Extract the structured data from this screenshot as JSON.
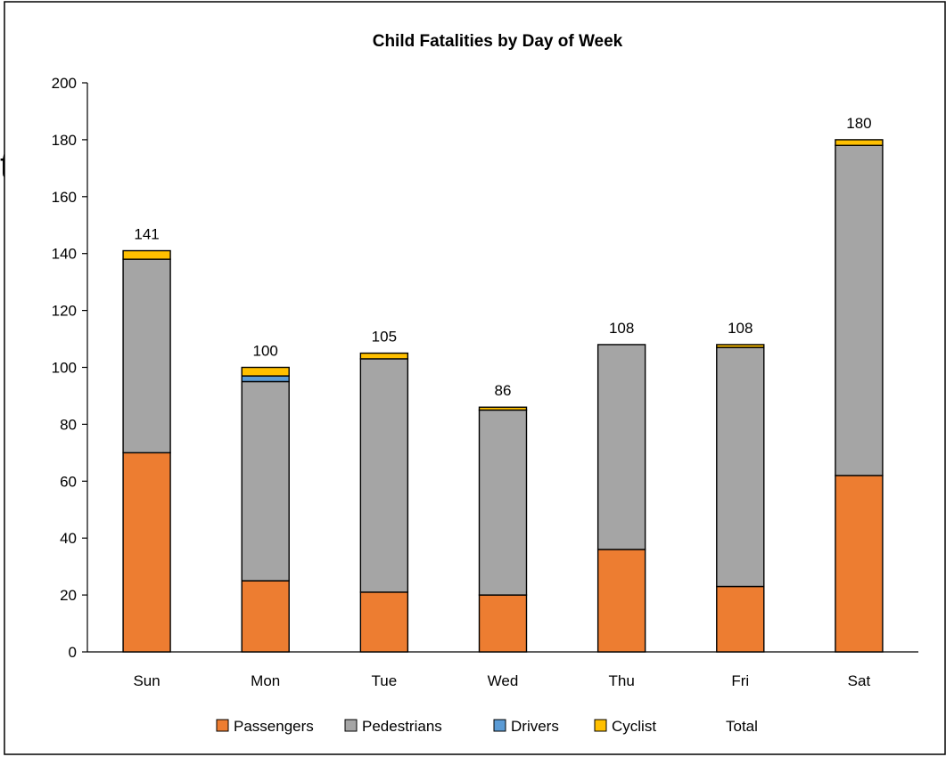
{
  "stray_text": "t",
  "chart_data": {
    "type": "bar",
    "stacked": true,
    "title": "Child Fatalities by Day of Week",
    "xlabel": "",
    "ylabel": "",
    "ylim": [
      0,
      200
    ],
    "yticks": [
      0,
      20,
      40,
      60,
      80,
      100,
      120,
      140,
      160,
      180,
      200
    ],
    "grid": false,
    "legend_position": "bottom",
    "categories": [
      "Sun",
      "Mon",
      "Tue",
      "Wed",
      "Thu",
      "Fri",
      "Sat"
    ],
    "series": [
      {
        "name": "Passengers",
        "color": "#ED7D31",
        "values": [
          70,
          25,
          21,
          20,
          36,
          23,
          62
        ]
      },
      {
        "name": "Pedestrians",
        "color": "#A5A5A5",
        "values": [
          68,
          70,
          82,
          65,
          72,
          84,
          116
        ]
      },
      {
        "name": "Drivers",
        "color": "#5B9BD5",
        "values": [
          0,
          2,
          0,
          0,
          0,
          0,
          0
        ]
      },
      {
        "name": "Cyclist",
        "color": "#FFC000",
        "values": [
          3,
          3,
          2,
          1,
          0,
          1,
          2
        ]
      }
    ],
    "total_label": "Total",
    "totals": [
      141,
      100,
      105,
      86,
      108,
      108,
      180
    ]
  }
}
